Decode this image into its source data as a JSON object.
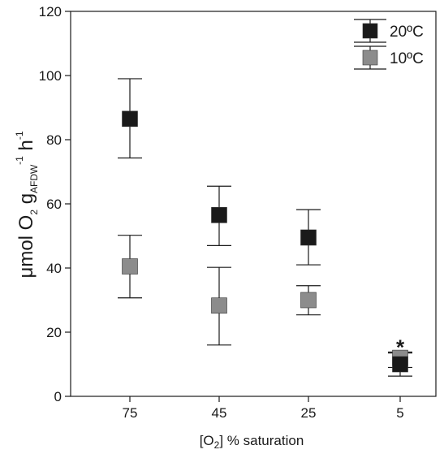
{
  "chart_data": {
    "type": "scatter",
    "categories": [
      "75",
      "45",
      "25",
      "5"
    ],
    "xlabel": {
      "prefix": "[O",
      "sub": "2",
      "suffix": "] % saturation"
    },
    "ylabel": {
      "prefix": "μmol O",
      "sub1": "2",
      "mid": " g",
      "sub2": "AFDW",
      "sup1": "-1",
      "tail": " h",
      "sup2": "-1"
    },
    "ylim": [
      0,
      120
    ],
    "yticks": [
      0,
      20,
      40,
      60,
      80,
      100,
      120
    ],
    "grid": false,
    "legend_position": "top-right",
    "series": [
      {
        "name": "20ºC",
        "color": "#1a1a1a",
        "values": [
          86.5,
          56.5,
          49.5,
          10.0
        ],
        "error_low": [
          74.3,
          47.0,
          41.0,
          6.3
        ],
        "error_high": [
          99.0,
          65.5,
          58.2,
          13.5
        ]
      },
      {
        "name": "10ºC",
        "color": "#8c8c8c",
        "values": [
          40.5,
          28.3,
          30.0,
          12.0
        ],
        "error_low": [
          30.7,
          16.0,
          25.4,
          9.0
        ],
        "error_high": [
          50.2,
          40.2,
          34.5,
          13.8
        ]
      }
    ],
    "annotations": [
      {
        "category": "5",
        "text": "*"
      }
    ]
  }
}
